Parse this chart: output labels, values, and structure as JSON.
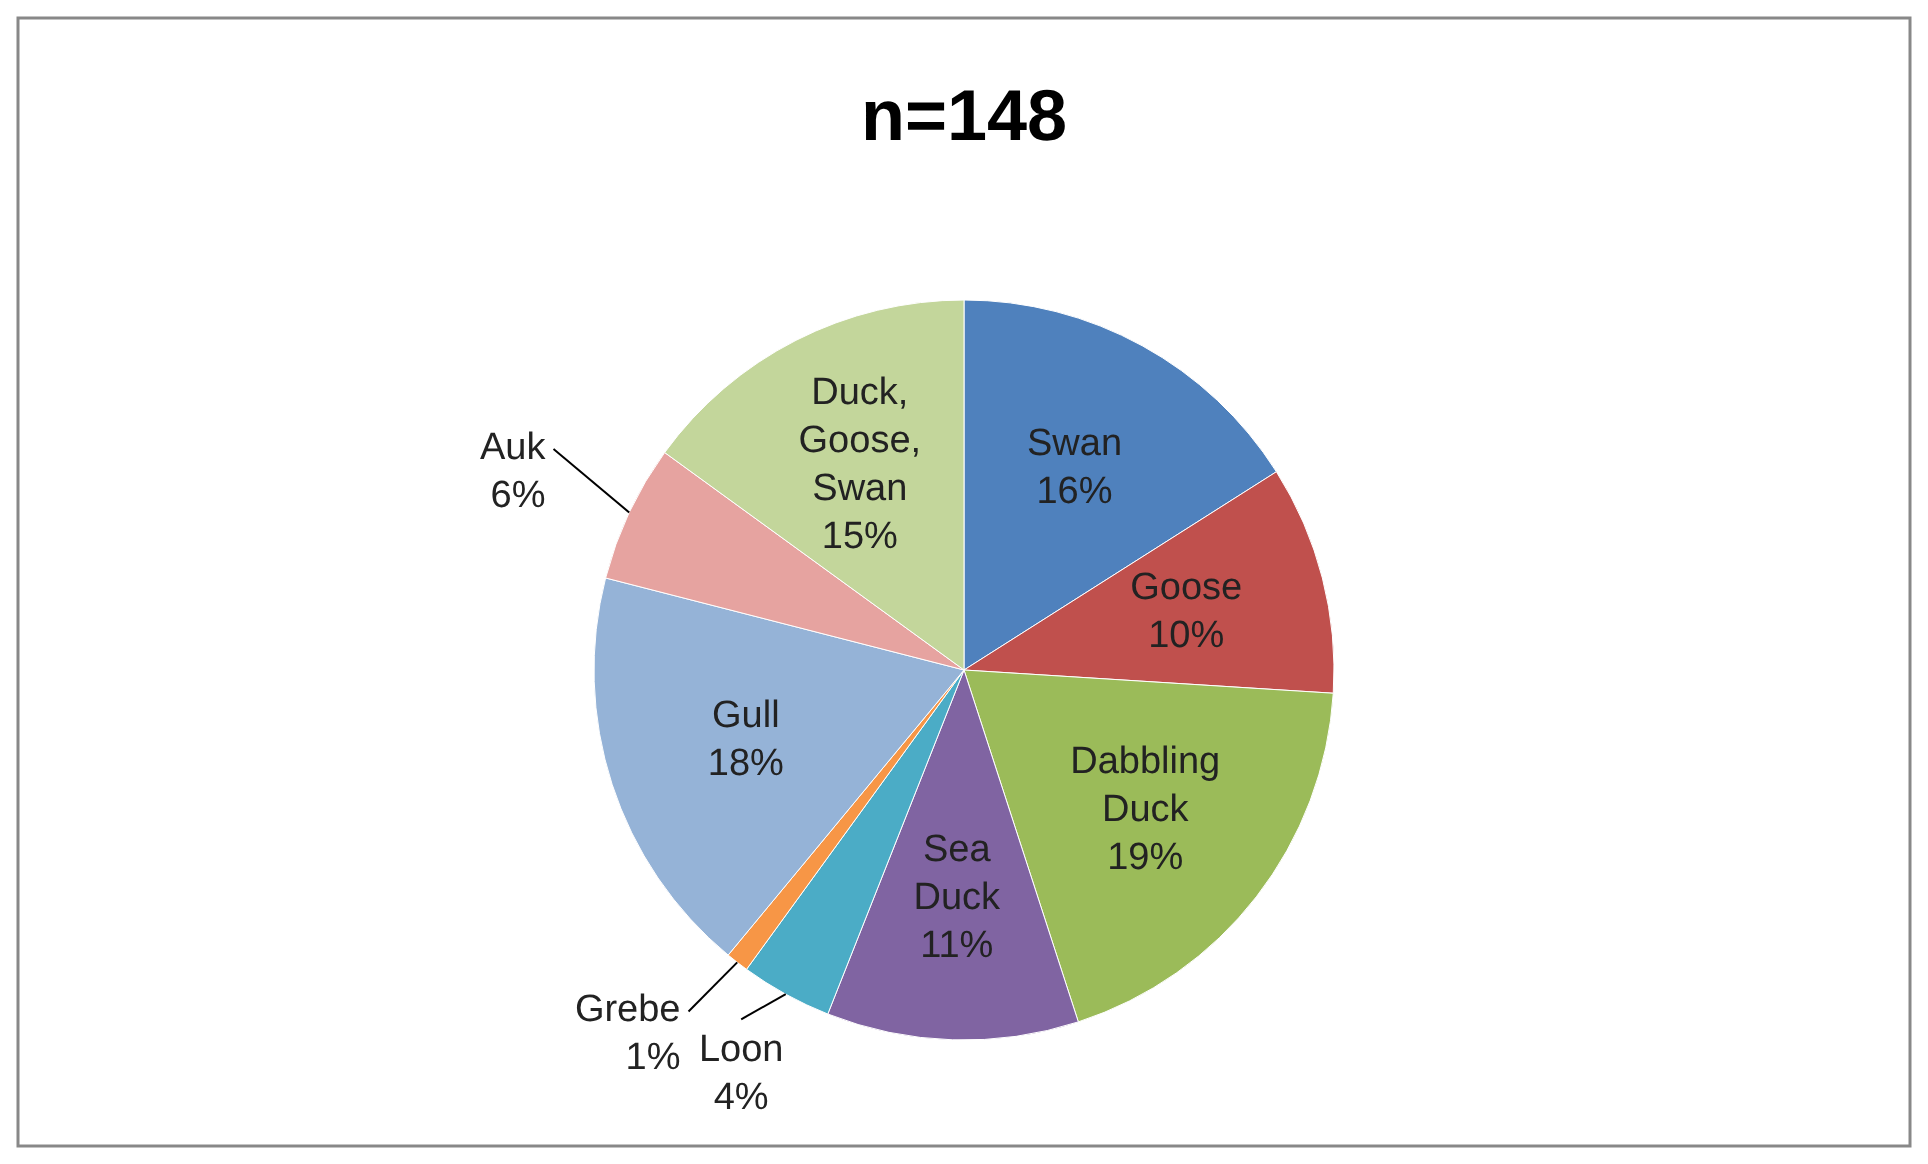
{
  "chart_data": {
    "type": "pie",
    "title": "n=148",
    "categories": [
      "Swan",
      "Goose",
      "Dabbling Duck",
      "Sea Duck",
      "Loon",
      "Grebe",
      "Gull",
      "Auk",
      "Duck, Goose, Swan"
    ],
    "values": [
      16,
      10,
      19,
      11,
      4,
      1,
      18,
      6,
      15
    ],
    "value_labels": [
      "16%",
      "10%",
      "19%",
      "11%",
      "4%",
      "1%",
      "18%",
      "6%",
      "15%"
    ],
    "colors": [
      "#4f81bd",
      "#c0504d",
      "#9bbb59",
      "#8064a2",
      "#4bacc6",
      "#f79646",
      "#95b3d7",
      "#e6a3a0",
      "#c3d69b"
    ]
  }
}
